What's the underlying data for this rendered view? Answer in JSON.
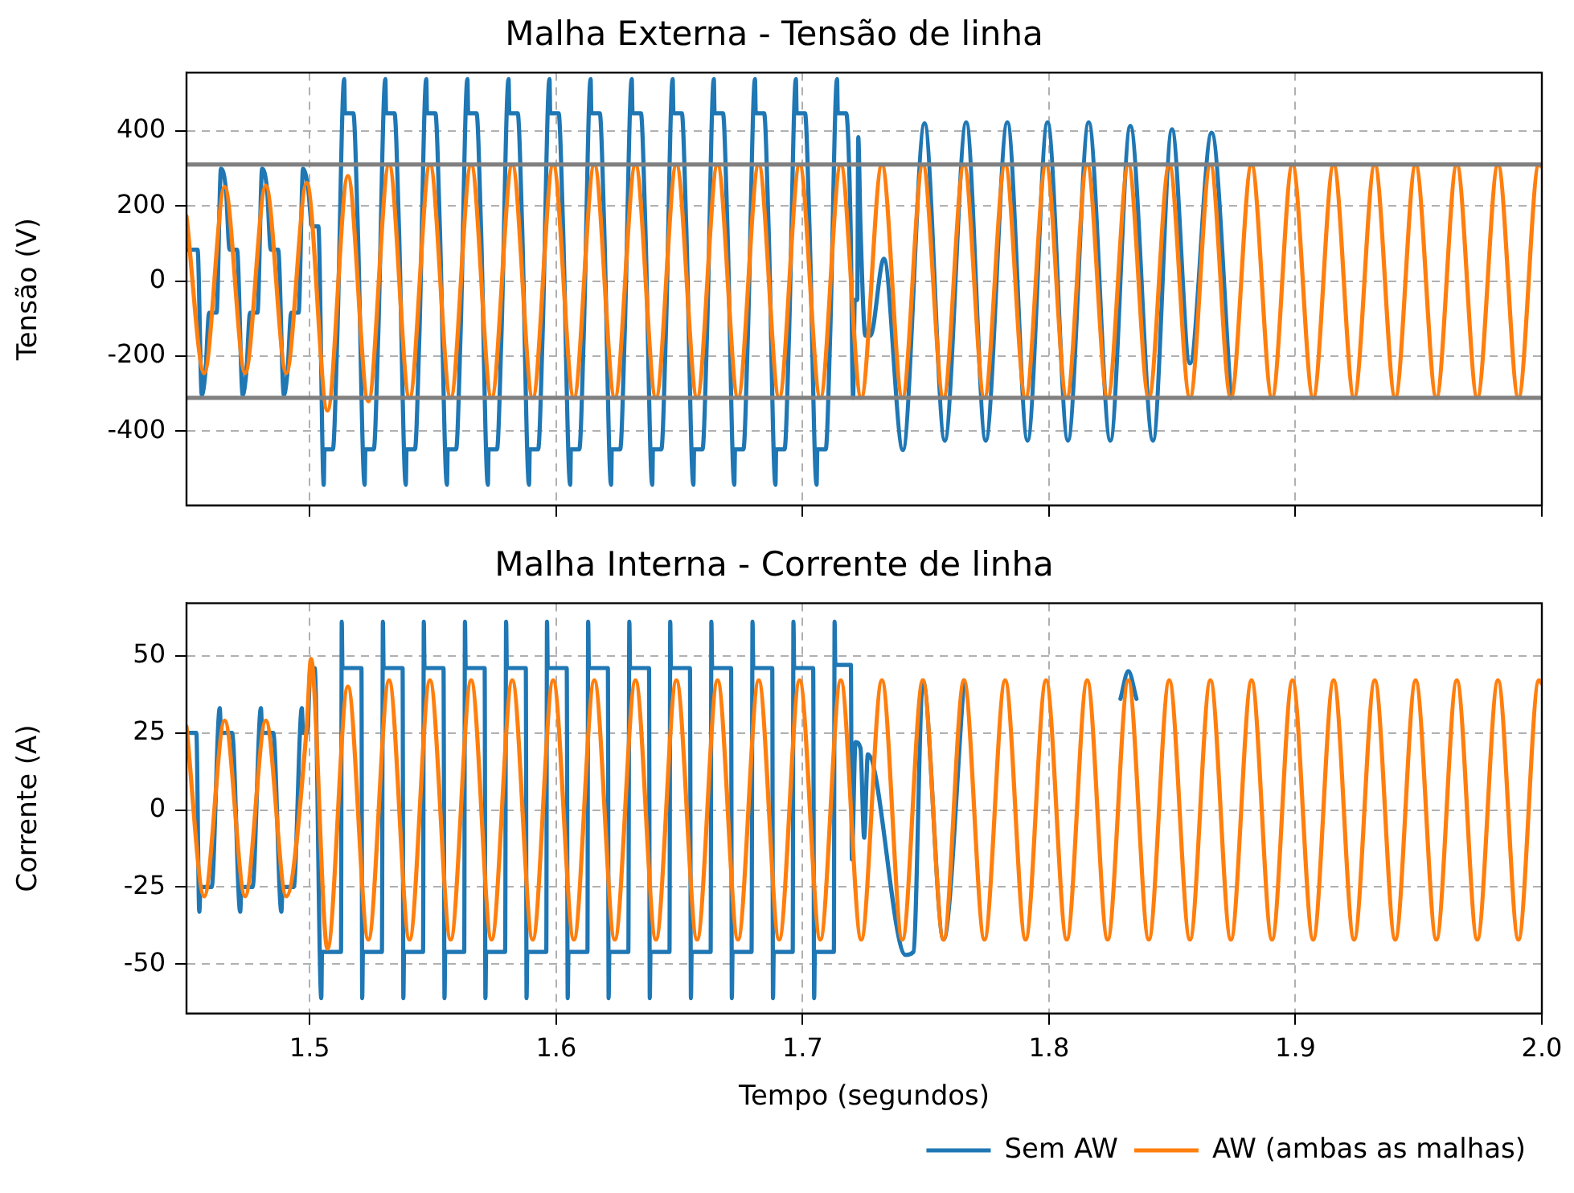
{
  "chart_data": [
    {
      "type": "line",
      "title": "Malha Externa - Tensão de linha",
      "ylabel": "Tensão (V)",
      "xlim": [
        1.45,
        2.0
      ],
      "xticks": [
        1.5,
        1.6,
        1.7,
        1.8,
        1.9,
        2.0
      ],
      "ylim": [
        -598,
        556
      ],
      "yticks": [
        -400,
        -200,
        0,
        200,
        400
      ],
      "grid": true,
      "tick_labels": "y",
      "ref_lines": [
        {
          "axis": "y",
          "value": 311,
          "color": "#808080"
        },
        {
          "axis": "y",
          "value": -311,
          "color": "#808080"
        }
      ],
      "series": [
        {
          "color": "#1f77b4",
          "x": [
            1.45,
            1.4545,
            1.4562,
            1.4577,
            1.4592,
            1.4622,
            1.464,
            1.466,
            1.4675,
            1.4705,
            1.4728,
            1.4743,
            1.4758,
            1.4788,
            1.4807,
            1.4827,
            1.4842,
            1.4872,
            1.4895,
            1.491,
            1.4925,
            1.4955,
            1.4973,
            1.4993,
            1.501,
            1.5035,
            1.5057,
            1.506,
            1.5094,
            1.5112,
            1.514,
            1.5143,
            1.5177,
            1.5195,
            1.5223,
            1.5226,
            1.526,
            1.5278,
            1.5307,
            1.531,
            1.5344,
            1.5362,
            1.539,
            1.5393,
            1.5427,
            1.5445,
            1.5473,
            1.5476,
            1.551,
            1.5528,
            1.5557,
            1.556,
            1.5594,
            1.5612,
            1.564,
            1.5643,
            1.5677,
            1.5695,
            1.5723,
            1.5726,
            1.576,
            1.5778,
            1.5807,
            1.581,
            1.5844,
            1.5862,
            1.589,
            1.5893,
            1.5927,
            1.5945,
            1.5973,
            1.5976,
            1.601,
            1.6028,
            1.6057,
            1.606,
            1.6094,
            1.6112,
            1.614,
            1.6143,
            1.6177,
            1.6195,
            1.6223,
            1.6226,
            1.626,
            1.6278,
            1.6307,
            1.631,
            1.6344,
            1.6362,
            1.639,
            1.6393,
            1.6427,
            1.6445,
            1.6473,
            1.6476,
            1.651,
            1.6528,
            1.6557,
            1.656,
            1.6594,
            1.6612,
            1.664,
            1.6643,
            1.6677,
            1.6695,
            1.6723,
            1.6726,
            1.676,
            1.6778,
            1.6807,
            1.681,
            1.6844,
            1.6862,
            1.689,
            1.6893,
            1.6927,
            1.6945,
            1.6973,
            1.6976,
            1.701,
            1.7028,
            1.7057,
            1.706,
            1.7094,
            1.7112,
            1.714,
            1.7143,
            1.7177,
            1.7195,
            1.7205,
            1.7212,
            1.7222,
            1.7226,
            1.7235,
            1.7255,
            1.7275,
            1.733,
            1.7407,
            1.7495,
            1.7577,
            1.7664,
            1.7743,
            1.7831,
            1.7913,
            1.7994,
            1.8077,
            1.8161,
            1.8249,
            1.833,
            1.8422,
            1.8499,
            1.8572,
            1.866,
            1.8738
          ],
          "values": [
            84,
            84,
            -303,
            -240,
            -84,
            -84,
            300,
            244,
            84,
            84,
            -303,
            -240,
            -84,
            -84,
            300,
            244,
            84,
            84,
            -303,
            -240,
            -84,
            -84,
            300,
            250,
            146,
            146,
            -543,
            -448,
            -448,
            -146,
            539,
            448,
            448,
            146,
            -543,
            -448,
            -448,
            -146,
            539,
            448,
            448,
            146,
            -543,
            -448,
            -448,
            -146,
            539,
            448,
            448,
            146,
            -543,
            -448,
            -448,
            -146,
            539,
            448,
            448,
            146,
            -543,
            -448,
            -448,
            -146,
            539,
            448,
            448,
            146,
            -543,
            -448,
            -448,
            -146,
            539,
            448,
            448,
            146,
            -543,
            -448,
            -448,
            -146,
            539,
            448,
            448,
            146,
            -543,
            -448,
            -448,
            -146,
            539,
            448,
            448,
            146,
            -543,
            -448,
            -448,
            -146,
            539,
            448,
            448,
            146,
            -543,
            -448,
            -448,
            -146,
            539,
            448,
            448,
            146,
            -543,
            -448,
            -448,
            -146,
            539,
            448,
            448,
            146,
            -543,
            -448,
            -448,
            -146,
            539,
            448,
            448,
            146,
            -543,
            -448,
            -448,
            -146,
            539,
            448,
            448,
            146,
            -311,
            -50,
            -50,
            384,
            146,
            -145,
            -145,
            60,
            -450,
            421,
            -425,
            424,
            -425,
            424,
            -425,
            424,
            -425,
            424,
            -425,
            414,
            -425,
            405,
            -219,
            396,
            -311
          ]
        },
        {
          "color": "#ff7f0e",
          "x": [
            1.45,
            1.4572,
            1.4655,
            1.4738,
            1.4822,
            1.4905,
            1.4988,
            1.5072,
            1.5155,
            1.5238,
            1.5322,
            1.5405,
            1.5488,
            1.5572,
            1.5655,
            1.5738,
            1.5822,
            1.5905,
            1.5988,
            1.6072,
            1.6155,
            1.6238,
            1.6322,
            1.6405,
            1.6488,
            1.6572,
            1.6655,
            1.6738,
            1.6822,
            1.6905,
            1.6988,
            1.7072,
            1.7155,
            1.7238,
            1.7322,
            1.7405,
            1.7488,
            1.7572,
            1.7655,
            1.7738,
            1.7822,
            1.7905,
            1.7988,
            1.8072,
            1.8155,
            1.8238,
            1.8322,
            1.8405,
            1.8488,
            1.8572,
            1.8655,
            1.8738,
            1.8822,
            1.8905,
            1.8988,
            1.9072,
            1.9155,
            1.9238,
            1.9322,
            1.9405,
            1.9488,
            1.9572,
            1.9655,
            1.9738,
            1.9822,
            1.9905,
            1.9988,
            2.0
          ],
          "values": [
            173,
            -245,
            252,
            -245,
            255,
            -245,
            262,
            -345,
            280,
            -320,
            311,
            -311,
            311,
            -311,
            311,
            -311,
            311,
            -311,
            311,
            -311,
            311,
            -311,
            311,
            -311,
            311,
            -311,
            311,
            -311,
            311,
            -311,
            311,
            -311,
            311,
            -311,
            311,
            -311,
            311,
            -311,
            311,
            -311,
            311,
            -311,
            311,
            -311,
            311,
            -311,
            311,
            -311,
            311,
            -311,
            311,
            -311,
            311,
            -311,
            311,
            -311,
            311,
            -311,
            311,
            -311,
            311,
            -311,
            311,
            -311,
            311,
            -311,
            311,
            305
          ]
        }
      ]
    },
    {
      "type": "line",
      "title": "Malha Interna - Corrente de linha",
      "ylabel": "Corrente (A)",
      "xlabel": "Tempo (segundos)",
      "xlim": [
        1.45,
        2.0
      ],
      "xticks": [
        1.5,
        1.6,
        1.7,
        1.8,
        1.9,
        {
          "value": 2.0,
          "label": "2.0"
        }
      ],
      "ylim": [
        -66,
        67
      ],
      "yticks": [
        -50,
        -25,
        0,
        25,
        50
      ],
      "grid": true,
      "legend": "bottom",
      "series": [
        {
          "name": "Sem AW",
          "color": "#1f77b4",
          "x": [
            1.45,
            1.454,
            1.4552,
            1.4557,
            1.4602,
            1.4635,
            1.464,
            1.4685,
            1.4718,
            1.4723,
            1.4768,
            1.4802,
            1.4807,
            1.4852,
            1.4885,
            1.489,
            1.4935,
            1.4968,
            1.4973,
            1.499,
            1.5003,
            1.502,
            1.5047,
            1.505,
            1.5127,
            1.513,
            1.5133,
            1.521,
            1.5213,
            1.5216,
            1.5293,
            1.5297,
            1.53,
            1.5377,
            1.538,
            1.5383,
            1.546,
            1.5463,
            1.5466,
            1.5543,
            1.5547,
            1.555,
            1.5627,
            1.563,
            1.5633,
            1.571,
            1.5713,
            1.5716,
            1.5793,
            1.5797,
            1.58,
            1.5877,
            1.588,
            1.5883,
            1.596,
            1.5963,
            1.5966,
            1.6043,
            1.6047,
            1.605,
            1.6127,
            1.613,
            1.6133,
            1.621,
            1.6213,
            1.6216,
            1.6293,
            1.6297,
            1.63,
            1.6377,
            1.638,
            1.6383,
            1.646,
            1.6463,
            1.6466,
            1.6543,
            1.6547,
            1.655,
            1.6627,
            1.663,
            1.6633,
            1.671,
            1.6713,
            1.6716,
            1.6793,
            1.6797,
            1.68,
            1.6877,
            1.688,
            1.6883,
            1.696,
            1.6963,
            1.6966,
            1.7043,
            1.7047,
            1.705,
            1.7127,
            1.713,
            1.7133,
            1.7196,
            1.72,
            1.7215,
            1.7235,
            1.725,
            1.7265,
            1.7418,
            1.745,
            1.7488,
            1.7572,
            1.7655,
            1.79,
            1.829,
            1.8322,
            1.8355
          ],
          "values": [
            25,
            25,
            -33,
            -25,
            -25,
            33,
            25,
            25,
            -33,
            -25,
            -25,
            33,
            25,
            25,
            -33,
            -25,
            -25,
            33,
            25,
            25,
            46,
            46,
            -61,
            -46,
            -46,
            61,
            46,
            46,
            -61,
            -46,
            -46,
            61,
            46,
            46,
            -61,
            -46,
            -46,
            61,
            46,
            46,
            -61,
            -46,
            -46,
            61,
            46,
            46,
            -61,
            -46,
            -46,
            61,
            46,
            46,
            -61,
            -46,
            -46,
            61,
            46,
            46,
            -61,
            -46,
            -46,
            61,
            46,
            46,
            -61,
            -46,
            -46,
            61,
            46,
            46,
            -61,
            -46,
            -46,
            61,
            46,
            46,
            -61,
            -46,
            -46,
            61,
            46,
            46,
            -61,
            -46,
            -46,
            61,
            46,
            46,
            -61,
            -46,
            -46,
            61,
            46,
            46,
            -61,
            -46,
            -46,
            61,
            47,
            47,
            -16,
            22,
            20,
            -9,
            18,
            -47,
            -46,
            42,
            -42,
            42,
            null,
            36,
            45,
            36
          ]
        },
        {
          "name": "AW (ambas as malhas)",
          "color": "#ff7f0e",
          "x": [
            1.45,
            1.4572,
            1.4655,
            1.4738,
            1.4822,
            1.4905,
            1.4988,
            1.5005,
            1.5072,
            1.5155,
            1.5238,
            1.5322,
            1.5405,
            1.5488,
            1.5572,
            1.5655,
            1.5738,
            1.5822,
            1.5905,
            1.5988,
            1.6072,
            1.6155,
            1.6238,
            1.6322,
            1.6405,
            1.6488,
            1.6572,
            1.6655,
            1.6738,
            1.6822,
            1.6905,
            1.6988,
            1.7072,
            1.7155,
            1.7238,
            1.7322,
            1.7405,
            1.7488,
            1.7572,
            1.7655,
            1.7738,
            1.7822,
            1.7905,
            1.7988,
            1.8072,
            1.8155,
            1.8238,
            1.8322,
            1.8405,
            1.8488,
            1.8572,
            1.8655,
            1.8738,
            1.8822,
            1.8905,
            1.8988,
            1.9072,
            1.9155,
            1.9238,
            1.9322,
            1.9405,
            1.9488,
            1.9572,
            1.9655,
            1.9738,
            1.9822,
            1.9905,
            1.9988,
            2.0
          ],
          "values": [
            27,
            -28,
            29,
            -28,
            29,
            -28,
            27,
            49,
            -45,
            40,
            -42,
            42,
            -42,
            42,
            -42,
            42,
            -42,
            42,
            -42,
            42,
            -42,
            42,
            -42,
            42,
            -42,
            42,
            -42,
            42,
            -42,
            42,
            -42,
            42,
            -42,
            42,
            -42,
            42,
            -42,
            42,
            -42,
            42,
            -42,
            42,
            -42,
            42,
            -42,
            42,
            -42,
            42,
            -42,
            42,
            -42,
            42,
            -42,
            42,
            -42,
            42,
            -42,
            42,
            -42,
            42,
            -42,
            42,
            -42,
            42,
            -42,
            42,
            -42,
            42,
            41
          ]
        }
      ]
    }
  ]
}
